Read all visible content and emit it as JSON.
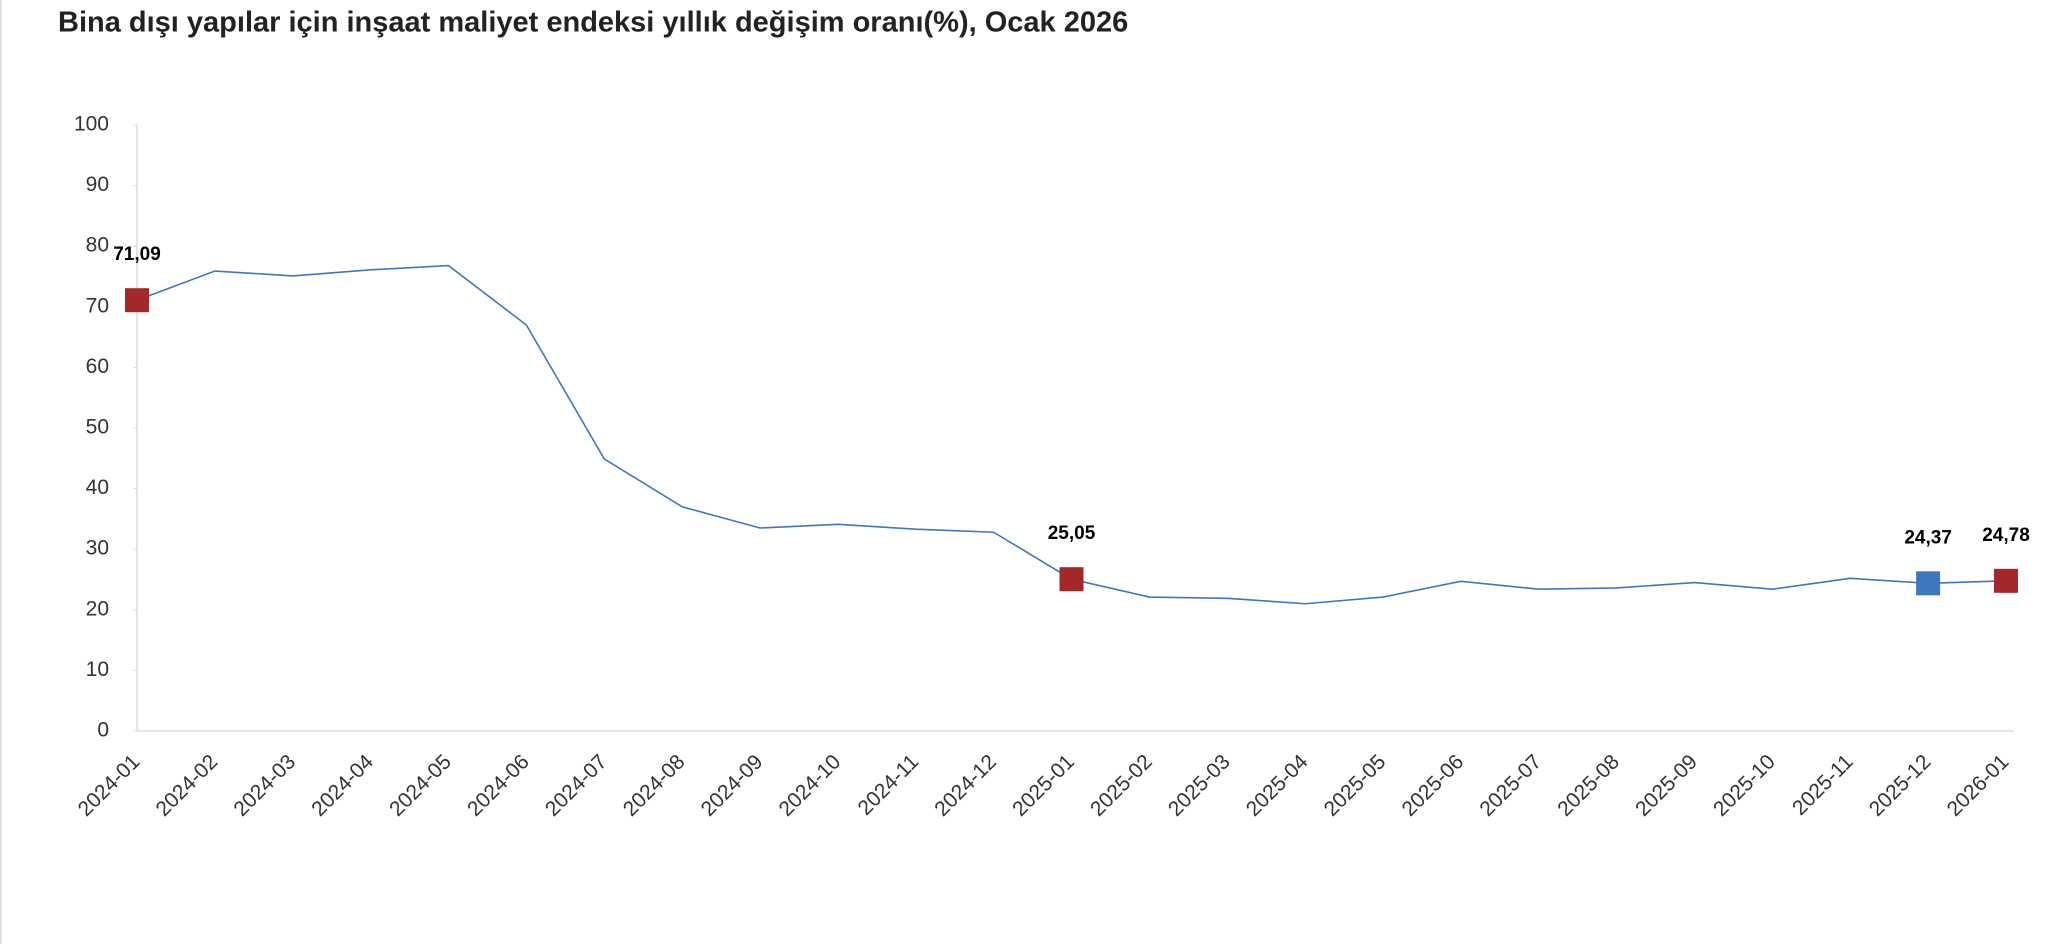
{
  "chart_data": {
    "type": "line",
    "title": "Bina dışı yapılar için inşaat maliyet endeksi yıllık değişim oranı(%), Ocak 2026",
    "categories": [
      "2024-01",
      "2024-02",
      "2024-03",
      "2024-04",
      "2024-05",
      "2024-06",
      "2024-07",
      "2024-08",
      "2024-09",
      "2024-10",
      "2024-11",
      "2024-12",
      "2025-01",
      "2025-02",
      "2025-03",
      "2025-04",
      "2025-05",
      "2025-06",
      "2025-07",
      "2025-08",
      "2025-09",
      "2025-10",
      "2025-11",
      "2025-12",
      "2026-01"
    ],
    "series": [
      {
        "color": "#3d78bd",
        "values": [
          71.09,
          75.9,
          75.1,
          76.1,
          76.8,
          67.0,
          44.9,
          37.0,
          33.5,
          34.1,
          33.3,
          32.8,
          25.05,
          22.1,
          21.9,
          21.0,
          22.1,
          24.7,
          23.4,
          23.6,
          24.5,
          23.4,
          25.2,
          24.37,
          24.78
        ],
        "value_labels": [
          "71,09",
          null,
          null,
          null,
          null,
          null,
          null,
          null,
          null,
          null,
          null,
          null,
          "25,05",
          null,
          null,
          null,
          null,
          null,
          null,
          null,
          null,
          null,
          null,
          "24,37",
          "24,78"
        ],
        "markers": [
          {
            "index": 0,
            "color": "#a3282a"
          },
          {
            "index": 12,
            "color": "#a3282a"
          },
          {
            "index": 23,
            "color": "#3d78bd"
          },
          {
            "index": 24,
            "color": "#a3282a"
          }
        ]
      }
    ],
    "ylim": [
      0,
      100
    ],
    "yticks": [
      0,
      10,
      20,
      30,
      40,
      50,
      60,
      70,
      80,
      90,
      100
    ],
    "grid": false
  }
}
